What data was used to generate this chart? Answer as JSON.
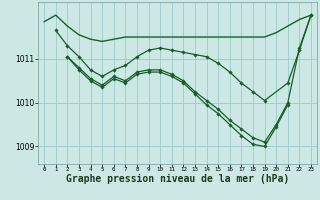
{
  "background_color": "#cce8e4",
  "grid_color": "#99cccc",
  "line_color": "#1a5c2a",
  "marker_color": "#1a5c2a",
  "xlabel": "Graphe pression niveau de la mer (hPa)",
  "xlabel_fontsize": 7.0,
  "ylabel_ticks": [
    1009,
    1010,
    1011
  ],
  "xlim": [
    -0.5,
    23.5
  ],
  "ylim": [
    1008.6,
    1012.3
  ],
  "xticks": [
    0,
    1,
    2,
    3,
    4,
    5,
    6,
    7,
    8,
    9,
    10,
    11,
    12,
    13,
    14,
    15,
    16,
    17,
    18,
    19,
    20,
    21,
    22,
    23
  ],
  "series": [
    {
      "x": [
        0,
        1,
        2,
        3,
        4,
        5,
        6,
        7,
        8,
        9,
        10,
        11,
        12,
        13,
        14,
        15,
        16,
        17,
        18,
        19,
        20,
        21,
        22,
        23
      ],
      "y": [
        1011.85,
        1012.0,
        1011.75,
        1011.55,
        1011.45,
        1011.4,
        1011.45,
        1011.5,
        1011.5,
        1011.5,
        1011.5,
        1011.5,
        1011.5,
        1011.5,
        1011.5,
        1011.5,
        1011.5,
        1011.5,
        1011.5,
        1011.5,
        1011.6,
        1011.75,
        1011.9,
        1012.0
      ],
      "has_marker": false,
      "lw": 1.0
    },
    {
      "x": [
        1,
        2,
        3,
        4,
        5,
        6,
        7,
        8,
        9,
        10,
        11,
        12,
        13,
        14,
        15,
        16,
        17,
        18,
        19,
        21,
        22,
        23
      ],
      "y": [
        1011.65,
        1011.3,
        1011.05,
        1010.75,
        1010.6,
        1010.75,
        1010.85,
        1011.05,
        1011.2,
        1011.25,
        1011.2,
        1011.15,
        1011.1,
        1011.05,
        1010.9,
        1010.7,
        1010.45,
        1010.25,
        1010.05,
        1010.45,
        1011.2,
        1012.0
      ],
      "has_marker": true,
      "lw": 0.9
    },
    {
      "x": [
        2,
        3,
        4,
        5,
        6,
        7,
        8,
        9,
        10,
        11,
        12,
        13,
        14,
        15,
        16,
        17,
        18,
        19,
        20,
        21,
        22,
        23
      ],
      "y": [
        1011.05,
        1010.8,
        1010.55,
        1010.4,
        1010.6,
        1010.5,
        1010.7,
        1010.75,
        1010.75,
        1010.65,
        1010.5,
        1010.25,
        1010.05,
        1009.85,
        1009.6,
        1009.4,
        1009.2,
        1009.1,
        1009.5,
        1010.0,
        1011.25,
        1012.0
      ],
      "has_marker": true,
      "lw": 0.9
    },
    {
      "x": [
        2,
        3,
        4,
        5,
        6,
        7,
        8,
        9,
        10,
        11,
        12,
        13,
        14,
        15,
        16,
        17,
        18,
        19,
        20,
        21
      ],
      "y": [
        1011.05,
        1010.75,
        1010.5,
        1010.35,
        1010.55,
        1010.45,
        1010.65,
        1010.7,
        1010.7,
        1010.6,
        1010.45,
        1010.2,
        1009.95,
        1009.75,
        1009.5,
        1009.25,
        1009.05,
        1009.0,
        1009.45,
        1009.95
      ],
      "has_marker": true,
      "lw": 0.9
    }
  ]
}
